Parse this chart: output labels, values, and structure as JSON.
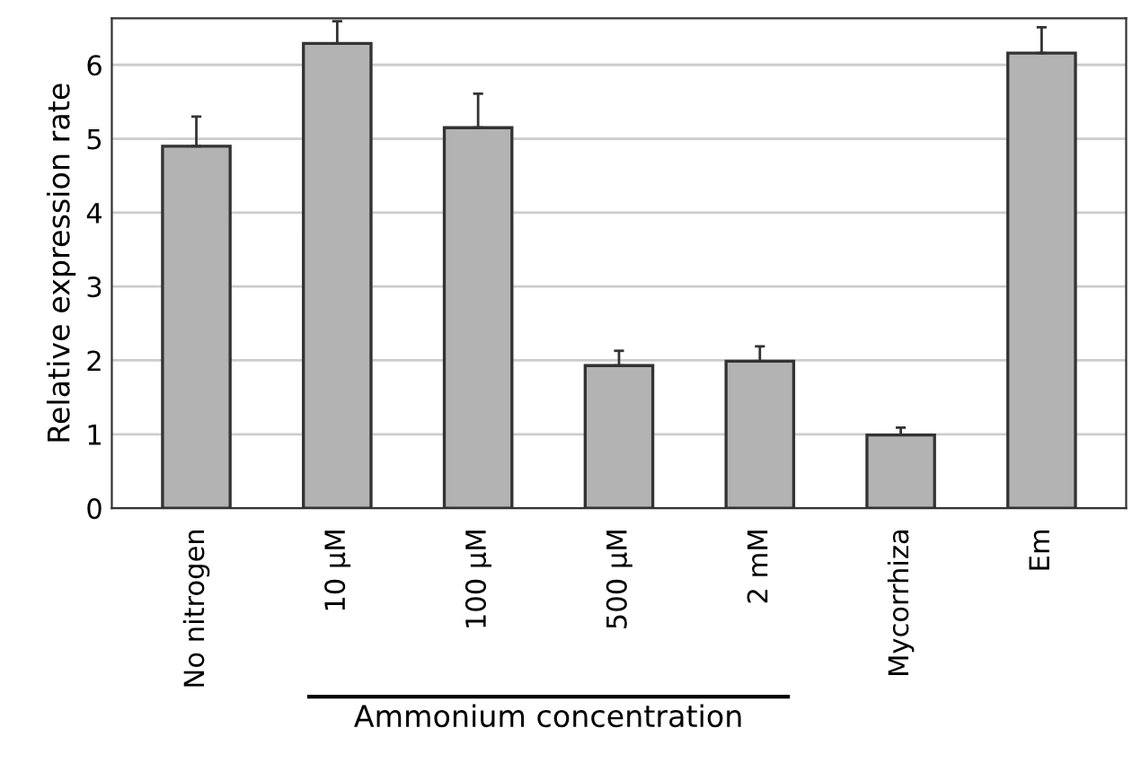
{
  "chart_data": {
    "type": "bar",
    "ylabel": "Relative expression rate",
    "categories": [
      "No nitrogen",
      "10 µM",
      "100 µM",
      "500 µM",
      "2 mM",
      "Mycorrhiza",
      "Em"
    ],
    "values": [
      4.9,
      6.29,
      5.15,
      1.93,
      1.99,
      0.99,
      6.16
    ],
    "errors": [
      [
        4.9,
        5.3
      ],
      [
        6.29,
        6.59
      ],
      [
        5.15,
        5.61
      ],
      [
        1.93,
        2.13
      ],
      [
        1.99,
        2.19
      ],
      [
        0.99,
        1.09
      ],
      [
        6.16,
        6.51
      ]
    ],
    "color": "#b3b3b3",
    "ylim": [
      0,
      6.63
    ],
    "yticks": [
      0,
      1,
      2,
      3,
      4,
      5,
      6
    ],
    "grid": "y",
    "annotations": [
      "Ammonium concentration"
    ]
  }
}
